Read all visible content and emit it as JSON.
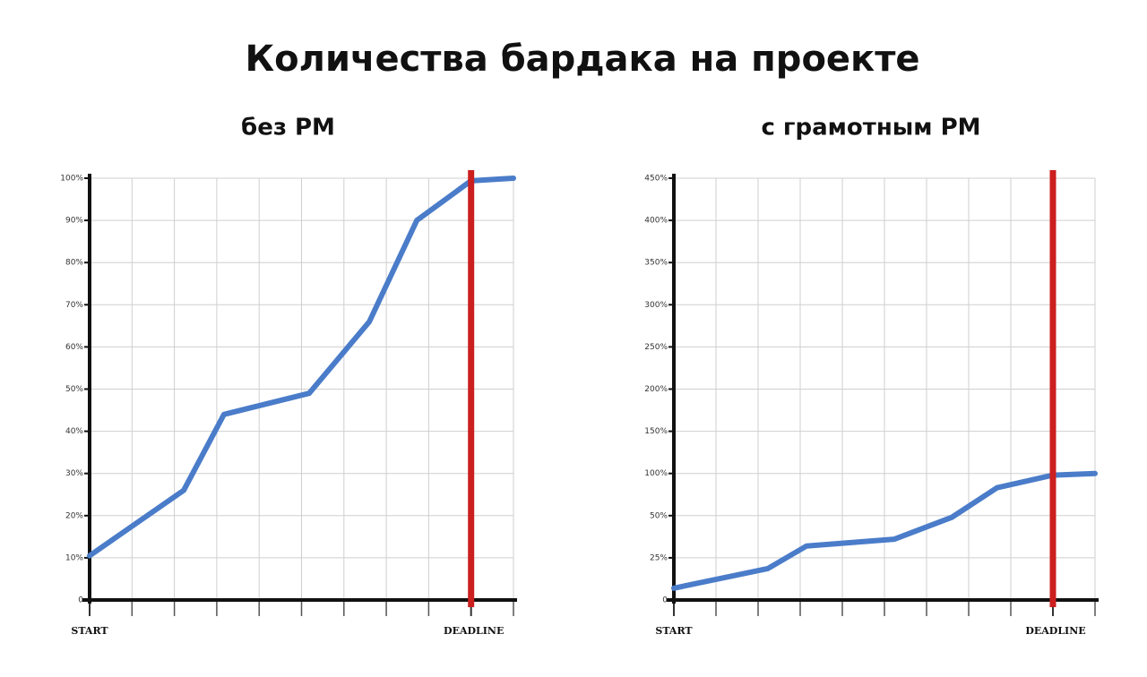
{
  "title": "Количества бардака на проекте",
  "chart_data": [
    {
      "type": "line",
      "title": "без PM",
      "x": [
        0,
        2.22,
        3.17,
        5.18,
        6.6,
        7.72,
        9,
        10
      ],
      "series": [
        {
          "color": "#4a7cc9",
          "values": [
            10.5,
            26,
            44,
            49,
            66,
            90,
            99.4,
            100
          ]
        }
      ],
      "xlim": [
        0,
        10
      ],
      "xticks": [
        {
          "value": 0,
          "label": "START"
        },
        {
          "value": 9,
          "label": "DEADLINE"
        }
      ],
      "xgrid": [
        1,
        2,
        3,
        4,
        5,
        6,
        7,
        8,
        9,
        10
      ],
      "ylim": [
        0,
        100
      ],
      "yscale": "linear",
      "yticks": [
        0,
        {
          "value": 10,
          "label": "10%"
        },
        {
          "value": 20,
          "label": "20%"
        },
        {
          "value": 30,
          "label": "30%"
        },
        {
          "value": 40,
          "label": "40%"
        },
        {
          "value": 50,
          "label": "50%"
        },
        {
          "value": 60,
          "label": "60%"
        },
        {
          "value": 70,
          "label": "70%"
        },
        {
          "value": 80,
          "label": "80%"
        },
        {
          "value": 90,
          "label": "90%"
        },
        {
          "value": 100,
          "label": "100%"
        }
      ],
      "grid": true,
      "deadline": {
        "x": 9,
        "color": "#cc1f1f"
      }
    },
    {
      "type": "line",
      "title": "с грамотным PM",
      "x": [
        0,
        2.23,
        3.15,
        5.23,
        6.6,
        7.67,
        9,
        10
      ],
      "series": [
        {
          "color": "#4a7cc9",
          "values": [
            7,
            18.6,
            32,
            36,
            49,
            83,
            98,
            100
          ]
        }
      ],
      "xlim": [
        0,
        10
      ],
      "xticks": [
        {
          "value": 0,
          "label": "START"
        },
        {
          "value": 9,
          "label": "DEADLINE"
        }
      ],
      "xgrid": [
        1,
        2,
        3,
        4,
        5,
        6,
        7,
        8,
        9,
        10
      ],
      "ylim": [
        0,
        450
      ],
      "yscale": "tick-spaced",
      "yticks": [
        0,
        {
          "value": 25,
          "label": "25%"
        },
        {
          "value": 50,
          "label": "50%"
        },
        {
          "value": 100,
          "label": "100%"
        },
        {
          "value": 150,
          "label": "150%"
        },
        {
          "value": 200,
          "label": "200%"
        },
        {
          "value": 250,
          "label": "250%"
        },
        {
          "value": 300,
          "label": "300%"
        },
        {
          "value": 350,
          "label": "350%"
        },
        {
          "value": 400,
          "label": "400%"
        },
        {
          "value": 450,
          "label": "450%"
        }
      ],
      "grid": true,
      "deadline": {
        "x": 9,
        "color": "#cc1f1f"
      }
    }
  ]
}
